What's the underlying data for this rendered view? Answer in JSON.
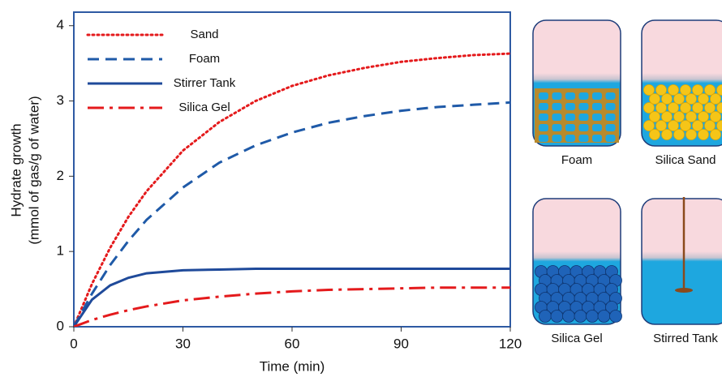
{
  "chart_data": {
    "type": "line",
    "x_label": "Time (min)",
    "y_label": [
      "Hydrate growth",
      "(mmol of gas/g of water)"
    ],
    "x": [
      0,
      5,
      10,
      15,
      20,
      30,
      40,
      50,
      60,
      70,
      80,
      90,
      100,
      110,
      120
    ],
    "series": [
      {
        "name": "Sand",
        "color": "#e41a1c",
        "dash": "dotted",
        "values": [
          0,
          0.57,
          1.05,
          1.46,
          1.8,
          2.34,
          2.72,
          3.0,
          3.2,
          3.34,
          3.44,
          3.52,
          3.57,
          3.61,
          3.63
        ]
      },
      {
        "name": "Foam",
        "color": "#1f5aa8",
        "dash": "dashed",
        "values": [
          0,
          0.44,
          0.82,
          1.14,
          1.42,
          1.85,
          2.18,
          2.41,
          2.58,
          2.71,
          2.8,
          2.87,
          2.92,
          2.95,
          2.98
        ]
      },
      {
        "name": "Stirrer Tank",
        "color": "#1f4a9a",
        "dash": "solid",
        "values": [
          0,
          0.36,
          0.55,
          0.65,
          0.71,
          0.75,
          0.76,
          0.77,
          0.77,
          0.77,
          0.77,
          0.77,
          0.77,
          0.77,
          0.77
        ]
      },
      {
        "name": "Silica Gel",
        "color": "#e41a1c",
        "dash": "dashdot",
        "values": [
          0,
          0.09,
          0.16,
          0.22,
          0.27,
          0.35,
          0.4,
          0.44,
          0.47,
          0.49,
          0.5,
          0.51,
          0.52,
          0.52,
          0.52
        ]
      }
    ],
    "xlim": [
      0,
      120
    ],
    "xticks": [
      0,
      30,
      60,
      90,
      120
    ],
    "ylim": [
      0,
      4.18
    ],
    "yticks": [
      0,
      1,
      2,
      3,
      4
    ],
    "legend": "upper-left"
  },
  "diagrams": [
    {
      "label": "Foam"
    },
    {
      "label": "Silica Sand"
    },
    {
      "label": "Silica Gel"
    },
    {
      "label": "Stirred Tank"
    }
  ]
}
